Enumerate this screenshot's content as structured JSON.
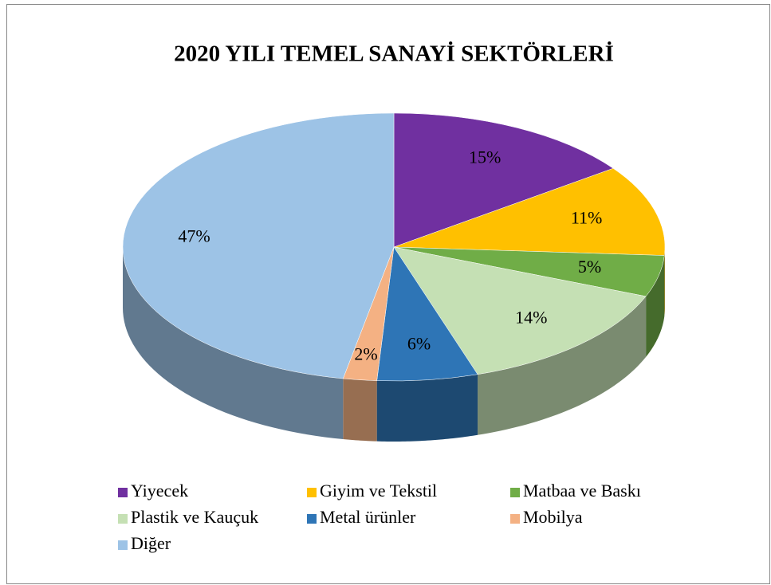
{
  "chart_data": {
    "type": "pie",
    "title": "2020 YILI TEMEL SANAYİ SEKTÖRLERİ",
    "categories": [
      "Yiyecek",
      "Giyim ve Tekstil",
      "Matbaa ve Baskı",
      "Plastik ve Kauçuk",
      "Metal ürünler",
      "Mobilya",
      "Diğer"
    ],
    "values": [
      15,
      11,
      5,
      14,
      6,
      2,
      47
    ],
    "value_labels": [
      "15%",
      "11%",
      "5%",
      "14%",
      "6%",
      "2%",
      "47%"
    ],
    "colors": [
      "#7030a0",
      "#ffc000",
      "#70ad47",
      "#c5e0b4",
      "#2e75b6",
      "#f4b183",
      "#9dc3e6"
    ],
    "legend": "bottom"
  }
}
